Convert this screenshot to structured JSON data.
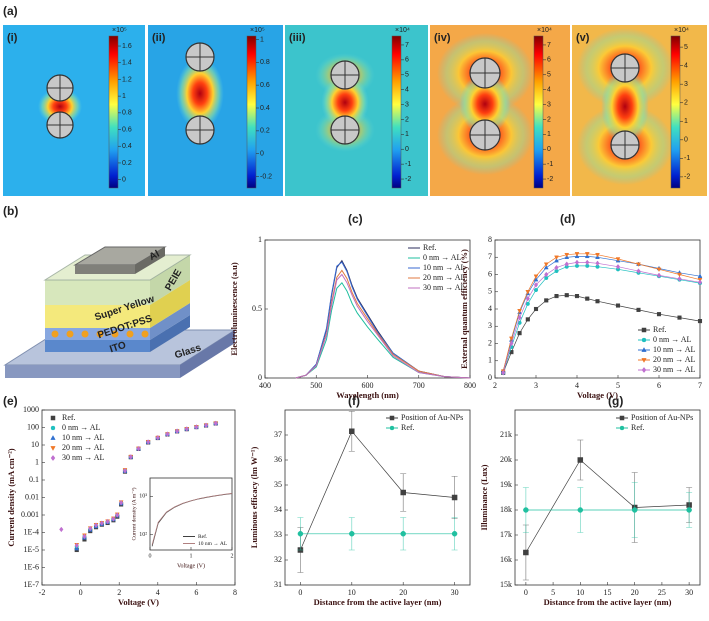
{
  "panel_labels": [
    "(a)",
    "(b)",
    "(c)",
    "(d)",
    "(e)",
    "(f)",
    "(g)"
  ],
  "field_maps": [
    {
      "label": "(i)",
      "multiplier": "×10⁵",
      "lim": [
        -0.1,
        1.72
      ],
      "ticks": [
        1.6,
        1.4,
        1.2,
        1,
        0.8,
        0.6,
        0.4,
        0.2,
        0
      ]
    },
    {
      "label": "(ii)",
      "multiplier": "×10⁵",
      "lim": [
        -0.3,
        1.03
      ],
      "ticks": [
        1,
        0.8,
        0.6,
        0.4,
        0.2,
        0,
        -0.2
      ]
    },
    {
      "label": "(iii)",
      "multiplier": "×10⁴",
      "lim": [
        -2.6,
        7.6
      ],
      "ticks": [
        7,
        6,
        5,
        4,
        3,
        2,
        1,
        0,
        -1,
        -2
      ]
    },
    {
      "label": "(iv)",
      "multiplier": "×10⁴",
      "lim": [
        -2.6,
        7.6
      ],
      "ticks": [
        7,
        6,
        5,
        4,
        3,
        2,
        1,
        0,
        -1,
        -2
      ]
    },
    {
      "label": "(v)",
      "multiplier": "×10⁴",
      "lim": [
        -2.6,
        5.6
      ],
      "ticks": [
        5,
        4,
        3,
        2,
        1,
        0,
        -1,
        -2
      ]
    }
  ],
  "device_layers": [
    "Al",
    "PEIE",
    "Super Yellow",
    "PEDOT:PSS",
    "ITO",
    "Glass"
  ],
  "chart_data": [
    {
      "type": "line",
      "xlabel": "Wavelength (nm)",
      "ylabel": "Electroluminescence (a.u)",
      "xlim": [
        400,
        800
      ],
      "xticks": [
        400,
        500,
        600,
        700,
        800
      ],
      "ylim": [
        0,
        1
      ],
      "yticks": [
        0,
        0.5,
        1
      ],
      "lines": true,
      "legend": "upper right",
      "x": [
        460,
        480,
        500,
        520,
        530,
        540,
        550,
        560,
        570,
        580,
        600,
        620,
        650,
        700,
        750,
        800
      ],
      "series": [
        {
          "name": "Ref.",
          "color": "#2b2d5c",
          "values": [
            0,
            0.02,
            0.1,
            0.35,
            0.6,
            0.8,
            0.85,
            0.78,
            0.67,
            0.58,
            0.46,
            0.34,
            0.18,
            0.05,
            0.01,
            0
          ]
        },
        {
          "name": "0 nm → AL",
          "color": "#1fbf9f",
          "values": [
            0,
            0.02,
            0.08,
            0.28,
            0.49,
            0.65,
            0.69,
            0.63,
            0.54,
            0.47,
            0.37,
            0.28,
            0.15,
            0.04,
            0.01,
            0
          ]
        },
        {
          "name": "10 nm → AL",
          "color": "#3a6ad0",
          "values": [
            0,
            0.02,
            0.1,
            0.36,
            0.61,
            0.81,
            0.84,
            0.77,
            0.66,
            0.57,
            0.45,
            0.33,
            0.18,
            0.05,
            0.01,
            0
          ]
        },
        {
          "name": "20 nm → AL",
          "color": "#e07a40",
          "values": [
            0,
            0.02,
            0.09,
            0.32,
            0.55,
            0.73,
            0.78,
            0.72,
            0.62,
            0.54,
            0.43,
            0.32,
            0.17,
            0.05,
            0.01,
            0
          ]
        },
        {
          "name": "30 nm → AL",
          "color": "#c070c0",
          "values": [
            0,
            0.02,
            0.09,
            0.31,
            0.53,
            0.71,
            0.75,
            0.69,
            0.6,
            0.52,
            0.41,
            0.31,
            0.16,
            0.04,
            0.01,
            0
          ]
        }
      ]
    },
    {
      "type": "line",
      "xlabel": "Voltage (V)",
      "ylabel": "External quantum efficiency (%)",
      "xlim": [
        2,
        7
      ],
      "xticks": [
        2,
        3,
        4,
        5,
        6,
        7
      ],
      "ylim": [
        0,
        8
      ],
      "yticks": [
        0,
        1,
        2,
        3,
        4,
        5,
        6,
        7,
        8
      ],
      "lines": true,
      "legend": "lower right",
      "x": [
        2.2,
        2.4,
        2.6,
        2.8,
        3,
        3.25,
        3.5,
        3.75,
        4,
        4.25,
        4.5,
        5,
        5.5,
        6,
        6.5,
        7
      ],
      "series": [
        {
          "name": "Ref.",
          "color": "#404040",
          "marker": "square",
          "values": [
            0.3,
            1.5,
            2.6,
            3.4,
            4,
            4.5,
            4.75,
            4.8,
            4.75,
            4.6,
            4.45,
            4.2,
            3.95,
            3.7,
            3.5,
            3.3
          ]
        },
        {
          "name": "0 nm → AL",
          "color": "#20c0c0",
          "marker": "circle",
          "values": [
            0.3,
            1.8,
            3.2,
            4.3,
            5.1,
            5.8,
            6.2,
            6.45,
            6.5,
            6.5,
            6.45,
            6.3,
            6.1,
            5.9,
            5.7,
            5.5
          ]
        },
        {
          "name": "10 nm → AL",
          "color": "#3070d0",
          "marker": "triangle-up",
          "values": [
            0.4,
            2.2,
            3.8,
            4.9,
            5.7,
            6.4,
            6.8,
            7,
            7.05,
            7.05,
            7,
            6.8,
            6.6,
            6.35,
            6.1,
            5.9
          ]
        },
        {
          "name": "20 nm → AL",
          "color": "#f07828",
          "marker": "triangle-down",
          "values": [
            0.4,
            2.3,
            3.9,
            5,
            5.9,
            6.6,
            7,
            7.15,
            7.2,
            7.2,
            7.15,
            6.9,
            6.6,
            6.3,
            6,
            5.7
          ]
        },
        {
          "name": "30 nm → AL",
          "color": "#c070d0",
          "marker": "diamond",
          "values": [
            0.3,
            2,
            3.5,
            4.6,
            5.4,
            6,
            6.4,
            6.6,
            6.7,
            6.7,
            6.65,
            6.45,
            6.2,
            5.95,
            5.75,
            5.55
          ]
        }
      ]
    },
    {
      "type": "line",
      "xlabel": "Voltage (V)",
      "ylabel": "Current density (mA cm⁻²)",
      "xlim": [
        -2,
        8
      ],
      "xticks": [
        -2,
        0,
        2,
        4,
        6,
        8
      ],
      "log_y": true,
      "ylim": [
        1e-07,
        1000
      ],
      "yticks": [
        1000,
        100,
        10,
        1,
        0.1,
        0.01,
        0.001,
        {
          "value": 0.0001,
          "label": "1E-4"
        },
        {
          "value": 1e-05,
          "label": "1E-5"
        },
        {
          "value": 1e-06,
          "label": "1E-6"
        },
        {
          "value": 1e-07,
          "label": "1E-7"
        }
      ],
      "lines": false,
      "legend": "upper left",
      "x": [
        -1,
        -0.2,
        0.2,
        0.5,
        0.8,
        1.1,
        1.4,
        1.7,
        1.9,
        2.1,
        2.3,
        2.6,
        3,
        3.5,
        4,
        4.5,
        5,
        5.5,
        6,
        6.5,
        7
      ],
      "series": [
        {
          "name": "Ref.",
          "color": "#404040",
          "marker": "square",
          "values": [
            null,
            1e-05,
            4e-05,
            0.00012,
            0.0002,
            0.00028,
            0.00035,
            0.0005,
            0.0008,
            0.004,
            0.3,
            2,
            6,
            14,
            25,
            40,
            60,
            80,
            105,
            130,
            170
          ]
        },
        {
          "name": "0 nm → AL",
          "color": "#20c0c0",
          "marker": "circle",
          "values": [
            null,
            1.5e-05,
            6e-05,
            0.00016,
            0.00025,
            0.00033,
            0.0004,
            0.0006,
            0.001,
            0.005,
            0.35,
            2.1,
            6.3,
            15,
            26,
            42,
            62,
            83,
            108,
            135,
            175
          ]
        },
        {
          "name": "10 nm → AL",
          "color": "#3070d0",
          "marker": "triangle-up",
          "values": [
            null,
            1.2e-05,
            5e-05,
            0.00014,
            0.00022,
            0.0003,
            0.00038,
            0.00055,
            0.0009,
            0.0045,
            0.32,
            2.05,
            6.1,
            14.5,
            25.5,
            41,
            61,
            82,
            106,
            133,
            172
          ]
        },
        {
          "name": "20 nm → AL",
          "color": "#f07828",
          "marker": "triangle-down",
          "values": [
            null,
            2e-05,
            7e-05,
            0.00018,
            0.00028,
            0.00036,
            0.00045,
            0.00065,
            0.0011,
            0.0055,
            0.38,
            2.2,
            6.5,
            15.5,
            27,
            43,
            63,
            85,
            110,
            138,
            178
          ]
        },
        {
          "name": "30 nm → AL",
          "color": "#c070d0",
          "marker": "diamond",
          "values": [
            0.00015,
            1.8e-05,
            6e-05,
            0.00017,
            0.00026,
            0.00034,
            0.00042,
            0.0006,
            0.001,
            0.005,
            0.34,
            2.1,
            6.2,
            15,
            26,
            42,
            62,
            83,
            107,
            134,
            174
          ]
        }
      ],
      "inset": {
        "type": "line",
        "xlabel": "Voltage (V)",
        "ylabel": "Current density (A m⁻²)",
        "xlim": [
          0,
          2
        ],
        "xticks": [
          0,
          1,
          2
        ],
        "log_y": true,
        "ylim": [
          40,
          3000
        ],
        "yticks": [
          {
            "value": 100,
            "label": "10²"
          },
          {
            "value": 1000,
            "label": "10³"
          }
        ],
        "lines": true,
        "legend": "lower right",
        "x": [
          0.05,
          0.2,
          0.4,
          0.6,
          0.8,
          1,
          1.2,
          1.4,
          1.6,
          1.8,
          2
        ],
        "series": [
          {
            "name": "Ref.",
            "color": "#404040",
            "values": [
              50,
              200,
              380,
              520,
              650,
              760,
              860,
              950,
              1030,
              1110,
              1180
            ]
          },
          {
            "name": "10 nm → AL",
            "color": "#b08080",
            "values": [
              55,
              210,
              390,
              530,
              660,
              770,
              870,
              960,
              1040,
              1120,
              1200
            ]
          }
        ]
      }
    },
    {
      "type": "line",
      "xlabel": "Distance from the active layer (nm)",
      "ylabel": "Luminous efficacy (lm W⁻¹)",
      "xlim": [
        -3,
        33
      ],
      "xticks": [
        0,
        10,
        20,
        30
      ],
      "ylim": [
        31,
        38
      ],
      "yticks": [
        31,
        32,
        33,
        34,
        35,
        36,
        37
      ],
      "lines": true,
      "legend": "upper right",
      "x": [
        0,
        10,
        20,
        30
      ],
      "series": [
        {
          "name": "Position of Au-NPs",
          "color": "#404040",
          "marker": "square",
          "values": [
            32.4,
            37.15,
            34.7,
            34.5
          ],
          "errors": [
            0.9,
            0.8,
            0.75,
            0.85
          ]
        },
        {
          "name": "Ref.",
          "color": "#20c0a0",
          "marker": "circle",
          "values": [
            33.05,
            33.05,
            33.05,
            33.05
          ],
          "errors": [
            0.65,
            0.65,
            0.65,
            0.65
          ]
        }
      ]
    },
    {
      "type": "line",
      "xlabel": "Distance from the active layer (nm)",
      "ylabel": "Illuminance (Lux)",
      "xlim": [
        -2,
        32
      ],
      "xticks": [
        0,
        5,
        10,
        15,
        20,
        25,
        30
      ],
      "ylim": [
        15000,
        22000
      ],
      "yticks": [
        {
          "value": 15000,
          "label": "15k"
        },
        {
          "value": 16000,
          "label": "16k"
        },
        {
          "value": 17000,
          "label": "17k"
        },
        {
          "value": 18000,
          "label": "18k"
        },
        {
          "value": 19000,
          "label": "19k"
        },
        {
          "value": 20000,
          "label": "20k"
        },
        {
          "value": 21000,
          "label": "21k"
        }
      ],
      "lines": true,
      "legend": "upper right",
      "x": [
        0,
        10,
        20,
        30
      ],
      "series": [
        {
          "name": "Position of Au-NPs",
          "color": "#404040",
          "marker": "square",
          "values": [
            16300,
            20000,
            18100,
            18200
          ],
          "errors": [
            1100,
            800,
            1400,
            700
          ]
        },
        {
          "name": "Ref.",
          "color": "#20c0a0",
          "marker": "circle",
          "values": [
            18000,
            18000,
            18000,
            18000
          ],
          "errors": [
            900,
            900,
            1100,
            700
          ]
        }
      ]
    }
  ]
}
